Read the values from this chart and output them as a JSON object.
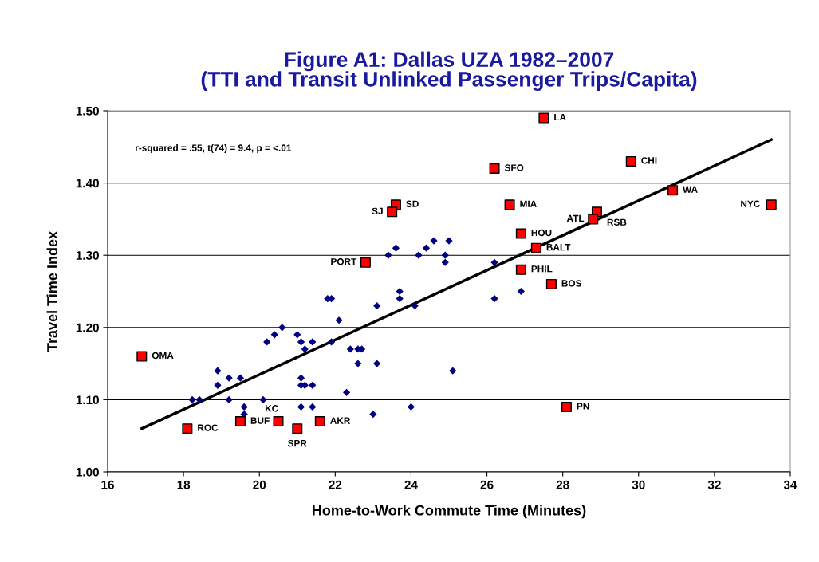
{
  "chart_data": {
    "type": "scatter",
    "title": "Figure A1: Dallas UZA 1982–2007\n(TTI and Transit Unlinked Passenger Trips/Capita)",
    "xlabel": "Home-to-Work Commute Time (Minutes)",
    "ylabel": "Travel Time Index",
    "xlim": [
      16,
      34
    ],
    "xticks": [
      16,
      18,
      20,
      22,
      24,
      26,
      28,
      30,
      32,
      34
    ],
    "ylim": [
      1.0,
      1.5
    ],
    "yticks": [
      {
        "value": 1.0,
        "label": "1.00"
      },
      {
        "value": 1.1,
        "label": "1.10"
      },
      {
        "value": 1.2,
        "label": "1.20"
      },
      {
        "value": 1.3,
        "label": "1.30"
      },
      {
        "value": 1.4,
        "label": "1.40"
      },
      {
        "value": 1.5,
        "label": "1.50"
      }
    ],
    "grid": "y",
    "legend": false,
    "series": [
      {
        "marker": "diamond",
        "color": "#000080",
        "x": [
          18.23,
          18.42,
          18.9,
          18.9,
          19.2,
          19.2,
          19.5,
          19.6,
          19.6,
          20.1,
          20.2,
          20.4,
          20.6,
          21.0,
          21.1,
          21.1,
          21.1,
          21.2,
          21.2,
          21.1,
          21.4,
          21.4,
          21.4,
          21.8,
          21.9,
          21.9,
          22.1,
          22.3,
          22.4,
          22.6,
          22.6,
          22.7,
          23.0,
          23.1,
          23.1,
          23.4,
          23.6,
          23.7,
          23.7,
          24.1,
          24.0,
          24.2,
          24.4,
          24.6,
          24.9,
          24.9,
          25.0,
          25.1,
          26.2,
          26.2,
          26.9
        ],
        "values": [
          1.1,
          1.1,
          1.14,
          1.12,
          1.13,
          1.1,
          1.13,
          1.09,
          1.08,
          1.1,
          1.18,
          1.19,
          1.2,
          1.19,
          1.18,
          1.13,
          1.12,
          1.12,
          1.17,
          1.09,
          1.18,
          1.12,
          1.09,
          1.24,
          1.24,
          1.18,
          1.21,
          1.11,
          1.17,
          1.15,
          1.17,
          1.17,
          1.08,
          1.23,
          1.15,
          1.3,
          1.31,
          1.25,
          1.24,
          1.23,
          1.09,
          1.3,
          1.31,
          1.32,
          1.29,
          1.3,
          1.32,
          1.14,
          1.29,
          1.24,
          1.25
        ]
      },
      {
        "marker": "square",
        "color": "#ff0000",
        "x": [
          27.5,
          29.8,
          26.2,
          30.9,
          33.5,
          23.6,
          23.5,
          26.6,
          28.9,
          28.8,
          26.9,
          27.3,
          22.8,
          26.9,
          27.7,
          16.9,
          28.1,
          18.1,
          19.5,
          20.5,
          21.0,
          21.6
        ],
        "values": [
          1.49,
          1.43,
          1.42,
          1.39,
          1.37,
          1.37,
          1.36,
          1.37,
          1.36,
          1.35,
          1.33,
          1.31,
          1.29,
          1.28,
          1.26,
          1.16,
          1.09,
          1.06,
          1.07,
          1.07,
          1.06,
          1.07
        ]
      },
      {
        "type": "line",
        "color": "#000000",
        "x": [
          16.9,
          33.5
        ],
        "values": [
          1.06,
          1.46
        ]
      }
    ],
    "annotations": [
      {
        "text": "LA",
        "x": 27.5,
        "y": 1.49
      },
      {
        "text": "CHI",
        "x": 29.8,
        "y": 1.43
      },
      {
        "text": "SFO",
        "x": 26.2,
        "y": 1.42
      },
      {
        "text": "WA",
        "x": 30.9,
        "y": 1.39
      },
      {
        "text": "NYC",
        "x": 33.5,
        "y": 1.37
      },
      {
        "text": "SD",
        "x": 23.6,
        "y": 1.37
      },
      {
        "text": "SJ",
        "x": 23.5,
        "y": 1.36
      },
      {
        "text": "MIA",
        "x": 26.6,
        "y": 1.37
      },
      {
        "text": "RSB",
        "x": 28.9,
        "y": 1.36
      },
      {
        "text": "ATL",
        "x": 28.8,
        "y": 1.35
      },
      {
        "text": "HOU",
        "x": 26.9,
        "y": 1.33
      },
      {
        "text": "BALT",
        "x": 27.3,
        "y": 1.31
      },
      {
        "text": "PORT",
        "x": 22.8,
        "y": 1.29
      },
      {
        "text": "PHIL",
        "x": 26.9,
        "y": 1.28
      },
      {
        "text": "BOS",
        "x": 27.7,
        "y": 1.26
      },
      {
        "text": "OMA",
        "x": 16.9,
        "y": 1.16
      },
      {
        "text": "PN",
        "x": 28.1,
        "y": 1.09
      },
      {
        "text": "ROC",
        "x": 18.1,
        "y": 1.06
      },
      {
        "text": "BUF",
        "x": 19.5,
        "y": 1.07
      },
      {
        "text": "KC",
        "x": 20.5,
        "y": 1.07
      },
      {
        "text": "SPR",
        "x": 21.0,
        "y": 1.06
      },
      {
        "text": "AKR",
        "x": 21.6,
        "y": 1.07
      },
      "r-squared = .55, t(74) = 9.4, p = <.01"
    ]
  }
}
